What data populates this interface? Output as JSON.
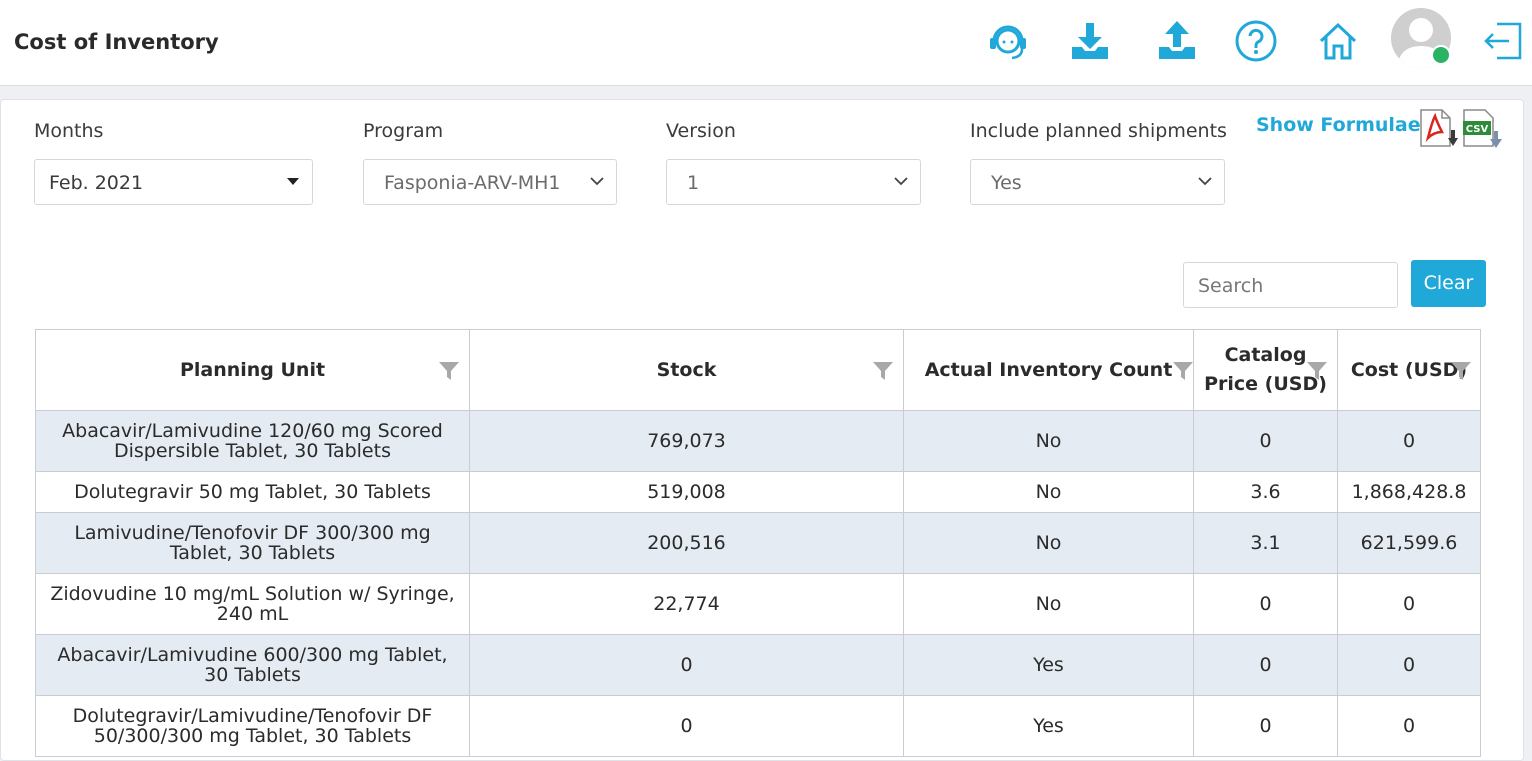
{
  "header": {
    "title": "Cost of Inventory",
    "icons": [
      "support-agent-icon",
      "download-icon",
      "upload-icon",
      "help-icon",
      "home-icon",
      "user-avatar",
      "logout-icon"
    ],
    "status_color": "#28b463",
    "accent": "#20a8d8"
  },
  "filters": {
    "months": {
      "label": "Months",
      "value": "Feb. 2021"
    },
    "program": {
      "label": "Program",
      "value": "Fasponia-ARV-MH1"
    },
    "version": {
      "label": "Version",
      "value": "1"
    },
    "planned": {
      "label": "Include planned shipments",
      "value": "Yes"
    }
  },
  "actions": {
    "show_formulae": "Show Formulae",
    "export_icons": [
      "pdf-export-icon",
      "csv-export-icon"
    ]
  },
  "search": {
    "placeholder": "Search",
    "clear_label": "Clear"
  },
  "table": {
    "columns": [
      "Planning Unit",
      "Stock",
      "Actual Inventory Count",
      "Catalog Price (USD)",
      "Cost (USD)"
    ],
    "rows": [
      [
        "Abacavir/Lamivudine 120/60 mg Scored Dispersible Tablet, 30 Tablets",
        "769,073",
        "No",
        "0",
        "0"
      ],
      [
        "Dolutegravir 50 mg Tablet, 30 Tablets",
        "519,008",
        "No",
        "3.6",
        "1,868,428.8"
      ],
      [
        "Lamivudine/Tenofovir DF 300/300 mg Tablet, 30 Tablets",
        "200,516",
        "No",
        "3.1",
        "621,599.6"
      ],
      [
        "Zidovudine 10 mg/mL Solution w/ Syringe, 240 mL",
        "22,774",
        "No",
        "0",
        "0"
      ],
      [
        "Abacavir/Lamivudine 600/300 mg Tablet, 30 Tablets",
        "0",
        "Yes",
        "0",
        "0"
      ],
      [
        "Dolutegravir/Lamivudine/Tenofovir DF 50/300/300 mg Tablet, 30 Tablets",
        "0",
        "Yes",
        "0",
        "0"
      ]
    ]
  }
}
